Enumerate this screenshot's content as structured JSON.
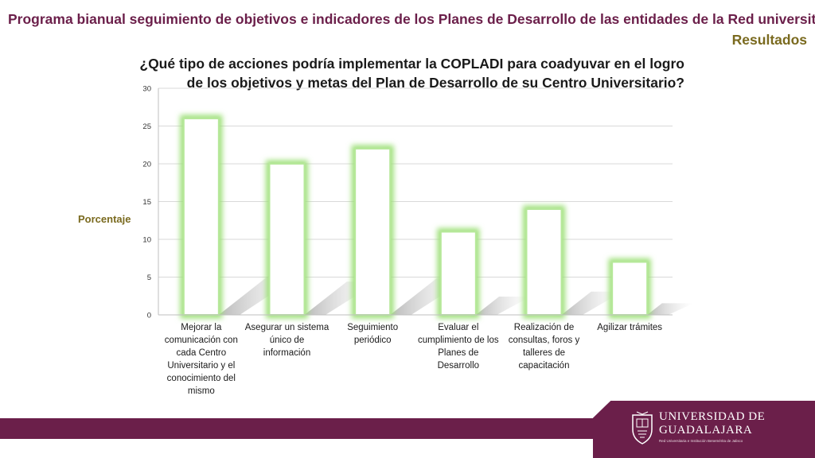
{
  "header": {
    "title": "Programa bianual seguimiento de objetivos e indicadores de los Planes de Desarrollo de las entidades de la Red universitaria",
    "subtitle": "Resultados"
  },
  "colors": {
    "header_purple": "#6b1f4a",
    "accent_olive": "#7a6a1f",
    "bar_glow": "#9fe07a",
    "gridline": "#d9d9d9"
  },
  "logo": {
    "line1": "UNIVERSIDAD DE",
    "line2": "GUADALAJARA",
    "tagline": "Red Universitaria e Institución Benemérita de Jalisco",
    "icon": "university-shield-icon"
  },
  "chart_data": {
    "type": "bar",
    "title": "¿Qué tipo de acciones podría implementar la COPLADI para coadyuvar en el logro de los objetivos y metas del Plan de Desarrollo de su Centro Universitario?",
    "xlabel": "",
    "ylabel": "Porcentaje",
    "ylim": [
      0,
      30
    ],
    "yticks": [
      0,
      5,
      10,
      15,
      20,
      25,
      30
    ],
    "grid": true,
    "categories": [
      "Mejorar la comunicación con cada Centro Universitario y el conocimiento del mismo",
      "Asegurar un sistema único de información",
      "Seguimiento periódico",
      "Evaluar el cumplimiento de los Planes de Desarrollo",
      "Realización de consultas, foros y talleres de capacitación",
      "Agilizar trámites"
    ],
    "values": [
      26,
      20,
      22,
      11,
      14,
      7
    ]
  }
}
